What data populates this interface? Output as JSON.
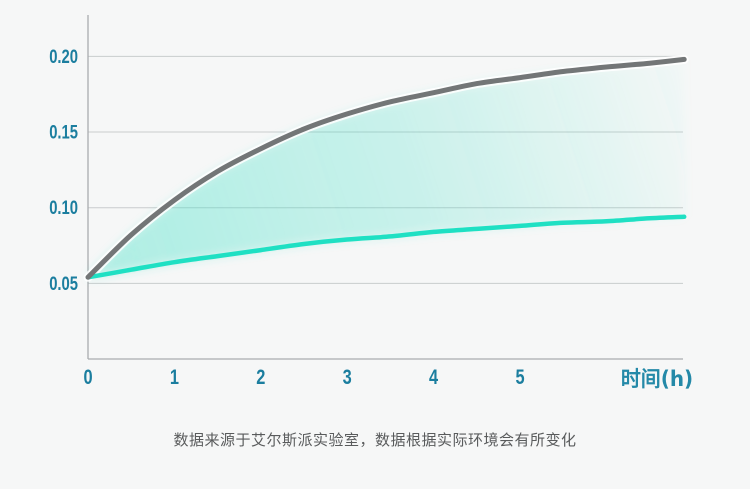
{
  "page": {
    "background": "#f6f7f7",
    "caption": "数据来源于艾尔斯派实验室，数据根据实际环境会有所变化",
    "caption_color": "#595b5c"
  },
  "chart_data": {
    "type": "line",
    "title": "",
    "xlabel": "时间(h)",
    "ylabel": "",
    "x_ticks": [
      0,
      1,
      2,
      3,
      4,
      5
    ],
    "x_tick_labels": [
      "0",
      "1",
      "2",
      "3",
      "4",
      "5"
    ],
    "y_ticks": [
      0.05,
      0.1,
      0.15,
      0.2
    ],
    "y_tick_labels": [
      "0.05",
      "0.10",
      "0.15",
      "0.20"
    ],
    "xlim": [
      0,
      6.9
    ],
    "ylim": [
      0,
      0.228
    ],
    "grid": "horizontal-only",
    "legend": "none",
    "x": [
      0,
      0.5,
      1,
      1.5,
      2,
      2.5,
      3,
      3.5,
      4,
      4.5,
      5,
      5.5,
      6,
      6.5,
      6.9
    ],
    "series": [
      {
        "name": "gray-curve",
        "color": "#737677",
        "width": 5,
        "values": [
          0.054,
          0.082,
          0.105,
          0.124,
          0.139,
          0.152,
          0.162,
          0.17,
          0.176,
          0.182,
          0.186,
          0.19,
          0.193,
          0.1955,
          0.198
        ]
      },
      {
        "name": "teal-curve",
        "color": "#1fe0c3",
        "width": 4.5,
        "values": [
          0.054,
          0.059,
          0.064,
          0.068,
          0.072,
          0.076,
          0.079,
          0.081,
          0.084,
          0.086,
          0.088,
          0.09,
          0.091,
          0.093,
          0.094
        ]
      }
    ],
    "fill_between": {
      "between_series": [
        "gray-curve",
        "teal-curve"
      ],
      "color": "#3ee0c6",
      "opacity_start": 0.4,
      "opacity_mid": 0.24,
      "opacity_end": 0.02
    },
    "style": {
      "axis_color": "#a9acae",
      "grid_color": "#c9cccd",
      "tick_label_color": "#1b7e9f",
      "xlabel_color": "#2489a8"
    }
  }
}
